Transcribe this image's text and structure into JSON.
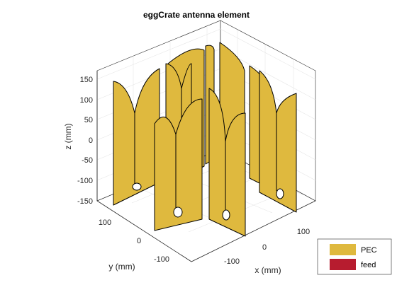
{
  "chart_data": {
    "type": "3d-surface",
    "title": "eggCrate antenna element",
    "xlabel": "x (mm)",
    "ylabel": "y (mm)",
    "zlabel": "z (mm)",
    "x_ticks": [
      "-100",
      "0",
      "100"
    ],
    "y_ticks": [
      "100",
      "0",
      "-100"
    ],
    "z_ticks": [
      "150",
      "100",
      "50",
      "0",
      "-50",
      "-100",
      "-150"
    ],
    "xlim": [
      -180,
      180
    ],
    "ylim": [
      -180,
      180
    ],
    "zlim": [
      -150,
      150
    ],
    "grid": true,
    "legend_position": "bottom-right",
    "legend": [
      {
        "label": "PEC",
        "color": "#dfb93e"
      },
      {
        "label": "feed",
        "color": "#b71c2f"
      }
    ]
  }
}
